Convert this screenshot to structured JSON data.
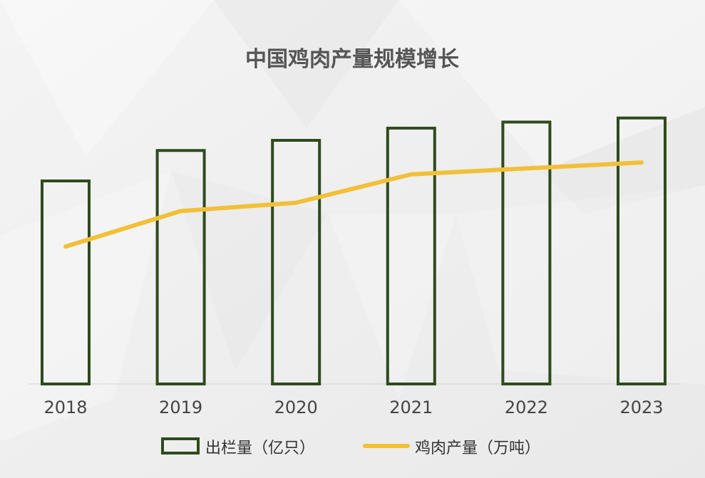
{
  "chart_data": {
    "type": "bar",
    "title": "中国鸡肉产量规模增长",
    "categories": [
      "2018",
      "2019",
      "2020",
      "2021",
      "2022",
      "2023"
    ],
    "series": [
      {
        "name": "出栏量（亿只）",
        "type": "bar",
        "axis": "left",
        "values": [
          100,
          115,
          120,
          126,
          129,
          131
        ],
        "color": "#2e4a1e"
      },
      {
        "name": "鸡肉产量（万吨）",
        "type": "line",
        "axis": "right",
        "values": [
          1160,
          1460,
          1530,
          1770,
          1820,
          1870
        ],
        "color": "#f2c037"
      }
    ],
    "ylim_left": [
      0,
      140
    ],
    "ylim_right": [
      0,
      2400
    ],
    "legend_position": "bottom",
    "grid": false
  }
}
